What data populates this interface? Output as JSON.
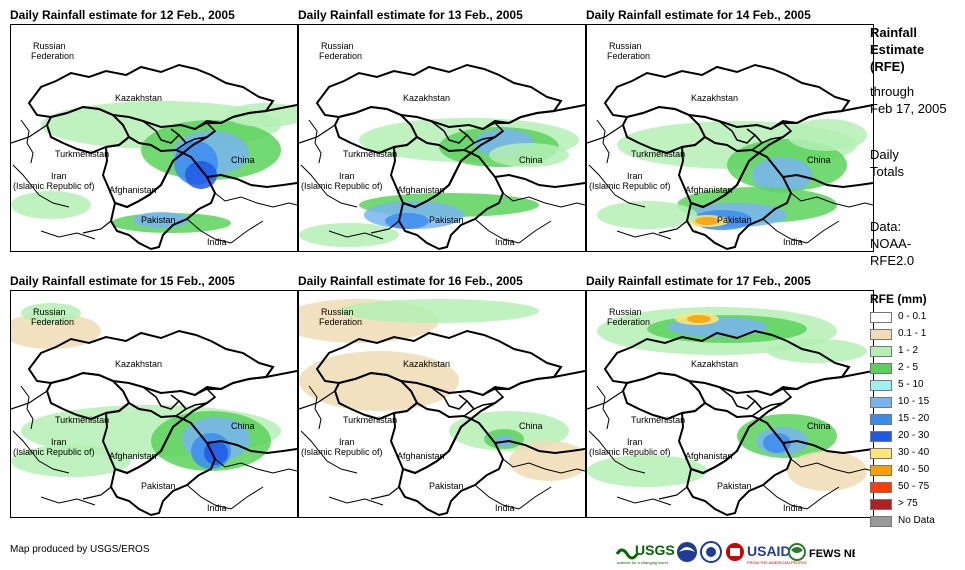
{
  "panels": [
    {
      "title": "Daily Rainfall estimate for 12 Feb., 2005"
    },
    {
      "title": "Daily Rainfall estimate for 13 Feb., 2005"
    },
    {
      "title": "Daily Rainfall estimate for 14 Feb., 2005"
    },
    {
      "title": "Daily Rainfall estimate for 15 Feb., 2005"
    },
    {
      "title": "Daily Rainfall estimate for 16 Feb., 2005"
    },
    {
      "title": "Daily Rainfall estimate for 17 Feb., 2005"
    }
  ],
  "places": {
    "russia_1": "Russian",
    "russia_2": "Federation",
    "kazakhstan": "Kazakhstan",
    "turkmenistan": "Turkmenistan",
    "iran_1": "Iran",
    "iran_2": "(Islamic Republic of)",
    "afghanistan": "Afghanistan",
    "pakistan": "Pakistan",
    "china": "China",
    "india": "India"
  },
  "sidebar": {
    "rfe_1": "Rainfall",
    "rfe_2": "Estimate",
    "rfe_3": "(RFE)",
    "through_1": "through",
    "through_2": "Feb 17, 2005",
    "daily_1": "Daily",
    "daily_2": "Totals",
    "data_1": "Data:",
    "data_2": "NOAA-",
    "data_3": "RFE2.0"
  },
  "legend": {
    "title": "RFE (mm)",
    "items": [
      {
        "label": "0 - 0.1",
        "color": "#ffffff"
      },
      {
        "label": "0.1 - 1",
        "color": "#f0dcb4"
      },
      {
        "label": "1 - 2",
        "color": "#b4f0b4"
      },
      {
        "label": "2 - 5",
        "color": "#5ad25a"
      },
      {
        "label": "5 - 10",
        "color": "#a0f0f0"
      },
      {
        "label": "10 - 15",
        "color": "#78b4f0"
      },
      {
        "label": "15 - 20",
        "color": "#3c8cf0"
      },
      {
        "label": "20 - 30",
        "color": "#1e5ae6"
      },
      {
        "label": "30 - 40",
        "color": "#ffe678"
      },
      {
        "label": "40 - 50",
        "color": "#ffa000"
      },
      {
        "label": "50 - 75",
        "color": "#ff3c00"
      },
      {
        "label": "> 75",
        "color": "#b41e1e"
      },
      {
        "label": "No Data",
        "color": "#999999"
      }
    ]
  },
  "footer": {
    "credit": "Map produced by USGS/EROS",
    "logo_usgs": "USGS",
    "logo_usgs_tag": "science for a changing world",
    "logo_usaid": "USAID",
    "logo_usaid_tag": "FROM THE AMERICAN PEOPLE",
    "logo_fews": "FEWS NET"
  }
}
